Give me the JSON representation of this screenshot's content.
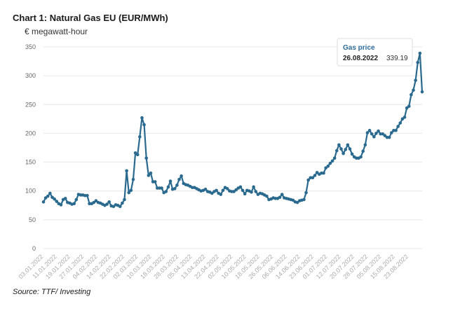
{
  "header": {
    "title": "Chart 1: Natural Gas EU (EUR/MWh)",
    "unit_label": "€ megawatt-hour"
  },
  "footer": {
    "source": "Source: TTF/ Investing"
  },
  "colors": {
    "series": "#2b6a8f",
    "grid": "#e6e6e6",
    "tooltip_title": "#2e6b9a"
  },
  "tooltip": {
    "title": "Gas price",
    "date": "26.08.2022",
    "value": "339.19"
  },
  "chart_data": {
    "type": "line",
    "title": "Chart 1: Natural Gas EU (EUR/MWh)",
    "ylabel": "€ megawatt-hour",
    "xlabel": "",
    "ylim": [
      0,
      350
    ],
    "yticks": [
      0,
      50,
      100,
      150,
      200,
      250,
      300,
      350
    ],
    "grid": true,
    "x_tick_labels": [
      "03.01.2022",
      "11.01.2022",
      "19.01.2022",
      "27.01.2022",
      "04.02.2022",
      "14.02.2022",
      "22.02.2022",
      "02.03.2022",
      "10.03.2022",
      "18.03.2022",
      "28.03.2022",
      "05.04.2022",
      "13.04.2022",
      "22.04.2022",
      "02.05.2022",
      "10.05.2022",
      "18.05.2022",
      "26.05.2022",
      "06.06.2022",
      "14.06.2022",
      "23.06.2022",
      "01.07.2022",
      "12.07.2022",
      "20.07.2022",
      "28.07.2022",
      "05.08.2022",
      "15.08.2022",
      "23.08.2022"
    ],
    "series": [
      {
        "name": "Gas price",
        "values": [
          81,
          88,
          91,
          96,
          89,
          86,
          82,
          78,
          76,
          85,
          87,
          80,
          79,
          77,
          78,
          85,
          94,
          93,
          93,
          92,
          92,
          78,
          78,
          80,
          83,
          80,
          79,
          77,
          75,
          77,
          81,
          74,
          73,
          76,
          75,
          73,
          79,
          85,
          135,
          97,
          101,
          120,
          166,
          163,
          194,
          227,
          215,
          157,
          127,
          131,
          116,
          116,
          105,
          105,
          105,
          97,
          99,
          107,
          117,
          103,
          104,
          110,
          120,
          126,
          113,
          111,
          110,
          108,
          106,
          106,
          104,
          102,
          100,
          101,
          103,
          99,
          98,
          96,
          99,
          101,
          96,
          94,
          101,
          106,
          104,
          100,
          99,
          99,
          102,
          105,
          107,
          101,
          95,
          101,
          100,
          98,
          107,
          99,
          94,
          96,
          95,
          93,
          91,
          85,
          86,
          88,
          87,
          87,
          89,
          94,
          88,
          87,
          86,
          85,
          84,
          81,
          80,
          83,
          84,
          85,
          97,
          119,
          123,
          123,
          127,
          132,
          129,
          131,
          131,
          140,
          143,
          148,
          152,
          157,
          170,
          180,
          173,
          165,
          172,
          180,
          173,
          164,
          159,
          157,
          157,
          159,
          169,
          180,
          201,
          205,
          199,
          194,
          200,
          204,
          199,
          199,
          196,
          193,
          193,
          201,
          205,
          205,
          212,
          218,
          225,
          228,
          244,
          247,
          267,
          275,
          292,
          323,
          339,
          272
        ]
      }
    ]
  }
}
